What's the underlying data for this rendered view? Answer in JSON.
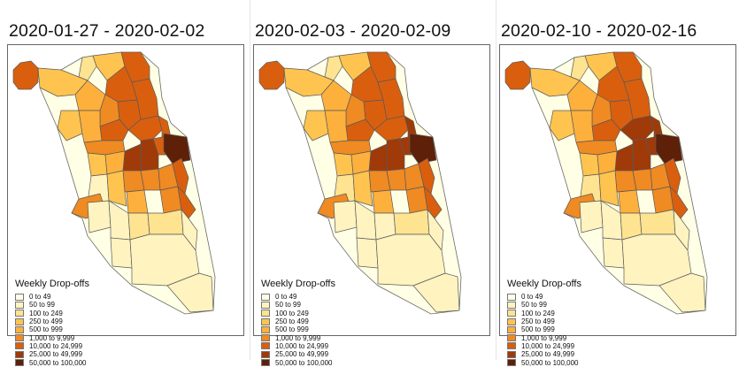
{
  "legend": {
    "title": "Weekly Drop-offs",
    "classes": [
      {
        "label": "0 to 49",
        "color": "#ffffe5"
      },
      {
        "label": "50 to 99",
        "color": "#fff3c0"
      },
      {
        "label": "100 to 249",
        "color": "#fee391"
      },
      {
        "label": "250 to 499",
        "color": "#fec44f"
      },
      {
        "label": "500 to 999",
        "color": "#feb03d"
      },
      {
        "label": "1,000 to 9,999",
        "color": "#f08a22"
      },
      {
        "label": "10,000 to 24,999",
        "color": "#d95f0e"
      },
      {
        "label": "25,000 to 49,999",
        "color": "#a03a08"
      },
      {
        "label": "50,000 to 100,000",
        "color": "#5e2008"
      }
    ]
  },
  "panels": [
    {
      "title": "2020-01-27 - 2020-02-02",
      "areas": {
        "airport": 6,
        "far_north_w": 2,
        "far_north_c": 3,
        "north_lake_a": 6,
        "north_lake_b": 6,
        "north_lake_c": 6,
        "nw_a": 3,
        "nw_b": 4,
        "nw_c": 5,
        "north_inner_a": 6,
        "north_inner_b": 6,
        "north_inner_c": 6,
        "lakeview": 6,
        "west_a": 3,
        "west_b": 4,
        "west_c": 5,
        "near_north": 6,
        "loop": 8,
        "near_west": 7,
        "near_south": 7,
        "south_w1": 3,
        "south_w2": 4,
        "south_c1": 5,
        "south_c2": 5,
        "south_lake1": 5,
        "south_lake2": 6,
        "south_w3": 1,
        "south_c3": 3,
        "south_c4": 4,
        "midway": 5,
        "south_lake3": 5,
        "hyde_park": 6,
        "far_sw": 1,
        "far_sc1": 1,
        "far_sc2": 2,
        "far_se1": 2,
        "far_se2": 1,
        "far_s1": 1,
        "far_s2": 1,
        "far_s3": 1
      }
    },
    {
      "title": "2020-02-03 - 2020-02-09",
      "areas": {
        "airport": 6,
        "far_north_w": 2,
        "far_north_c": 3,
        "north_lake_a": 6,
        "north_lake_b": 6,
        "north_lake_c": 6,
        "nw_a": 3,
        "nw_b": 4,
        "nw_c": 5,
        "north_inner_a": 6,
        "north_inner_b": 6,
        "north_inner_c": 6,
        "lakeview": 7,
        "west_a": 3,
        "west_b": 4,
        "west_c": 5,
        "near_north": 7,
        "loop": 8,
        "near_west": 7,
        "near_south": 7,
        "south_w1": 3,
        "south_w2": 4,
        "south_c1": 5,
        "south_c2": 5,
        "south_lake1": 5,
        "south_lake2": 6,
        "south_w3": 2,
        "south_c3": 3,
        "south_c4": 4,
        "midway": 5,
        "south_lake3": 5,
        "hyde_park": 6,
        "far_sw": 1,
        "far_sc1": 1,
        "far_sc2": 1,
        "far_se1": 2,
        "far_se2": 1,
        "far_s1": 1,
        "far_s2": 1,
        "far_s3": 1
      }
    },
    {
      "title": "2020-02-10 - 2020-02-16",
      "areas": {
        "airport": 6,
        "far_north_w": 2,
        "far_north_c": 3,
        "north_lake_a": 6,
        "north_lake_b": 6,
        "north_lake_c": 6,
        "nw_a": 3,
        "nw_b": 4,
        "nw_c": 5,
        "north_inner_a": 6,
        "north_inner_b": 6,
        "north_inner_c": 7,
        "lakeview": 7,
        "west_a": 3,
        "west_b": 4,
        "west_c": 5,
        "near_north": 7,
        "loop": 8,
        "near_west": 7,
        "near_south": 7,
        "south_w1": 3,
        "south_w2": 4,
        "south_c1": 5,
        "south_c2": 5,
        "south_lake1": 5,
        "south_lake2": 6,
        "south_w3": 2,
        "south_c3": 3,
        "south_c4": 4,
        "midway": 5,
        "south_lake3": 5,
        "hyde_park": 6,
        "far_sw": 1,
        "far_sc1": 1,
        "far_sc2": 2,
        "far_se1": 2,
        "far_se2": 1,
        "far_s1": 1,
        "far_s2": 1,
        "far_s3": 1
      }
    }
  ]
}
